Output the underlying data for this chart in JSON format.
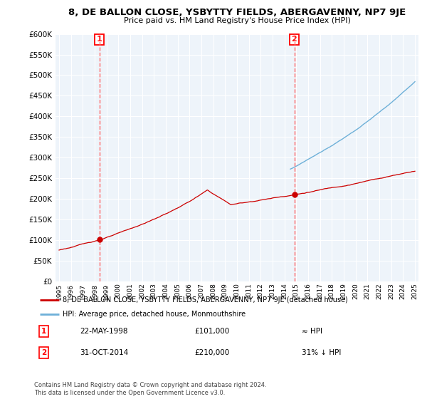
{
  "title": "8, DE BALLON CLOSE, YSBYTTY FIELDS, ABERGAVENNY, NP7 9JE",
  "subtitle": "Price paid vs. HM Land Registry's House Price Index (HPI)",
  "legend_line1": "8, DE BALLON CLOSE, YSBYTTY FIELDS, ABERGAVENNY, NP7 9JE (detached house)",
  "legend_line2": "HPI: Average price, detached house, Monmouthshire",
  "footer": "Contains HM Land Registry data © Crown copyright and database right 2024.\nThis data is licensed under the Open Government Licence v3.0.",
  "transaction1_date": "22-MAY-1998",
  "transaction1_price": "£101,000",
  "transaction1_rel": "≈ HPI",
  "transaction2_date": "31-OCT-2014",
  "transaction2_price": "£210,000",
  "transaction2_rel": "31% ↓ HPI",
  "transaction1_x": 1998.39,
  "transaction1_y": 101000,
  "transaction2_x": 2014.83,
  "transaction2_y": 210000,
  "vline1_x": 1998.39,
  "vline2_x": 2014.83,
  "ylim": [
    0,
    600000
  ],
  "xlim": [
    1994.7,
    2025.3
  ],
  "yticks": [
    0,
    50000,
    100000,
    150000,
    200000,
    250000,
    300000,
    350000,
    400000,
    450000,
    500000,
    550000,
    600000
  ],
  "hpi_color": "#6EB0D8",
  "price_color": "#CC0000",
  "vline_color": "#FF6666",
  "background_color": "#FFFFFF",
  "plot_bg_color": "#EEF4FA",
  "grid_color": "#FFFFFF"
}
